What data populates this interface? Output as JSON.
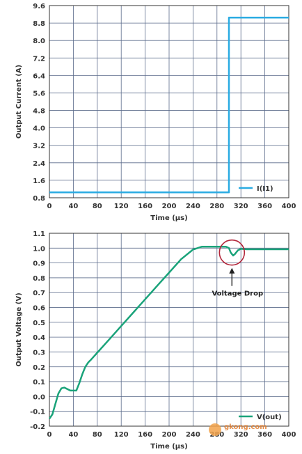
{
  "chart_data": [
    {
      "type": "line",
      "xlabel": "Time (μs)",
      "ylabel": "Output Current (A)",
      "xlim": [
        0,
        400
      ],
      "ylim": [
        0.8,
        9.6
      ],
      "xticks": [
        0,
        40,
        80,
        120,
        160,
        200,
        240,
        280,
        320,
        360,
        400
      ],
      "yticks": [
        0.8,
        1.6,
        2.4,
        3.2,
        4.0,
        4.8,
        5.6,
        6.4,
        7.2,
        8.0,
        8.8,
        9.6
      ],
      "grid": true,
      "legend_position": "bottom-right",
      "color": "#29abe2",
      "series": [
        {
          "name": "I(I1)",
          "x": [
            0,
            300,
            300,
            400
          ],
          "y": [
            1.05,
            1.05,
            9.05,
            9.05
          ]
        }
      ]
    },
    {
      "type": "line",
      "xlabel": "Time (μs)",
      "ylabel": "Output Voltage (V)",
      "xlim": [
        0,
        400
      ],
      "ylim": [
        -0.2,
        1.1
      ],
      "xticks": [
        0,
        40,
        80,
        120,
        160,
        200,
        240,
        280,
        320,
        360,
        400
      ],
      "yticks": [
        -0.2,
        -0.1,
        0.0,
        0.1,
        0.2,
        0.3,
        0.4,
        0.5,
        0.6,
        0.7,
        0.8,
        0.9,
        1.0,
        1.1
      ],
      "grid": true,
      "legend_position": "bottom-right",
      "color": "#1aa37a",
      "annotation": {
        "text": "Voltage Drop",
        "x": 305,
        "y": 0.97
      },
      "series": [
        {
          "name": "V(out)",
          "x": [
            0,
            5,
            10,
            15,
            20,
            25,
            30,
            35,
            40,
            45,
            50,
            55,
            60,
            65,
            70,
            80,
            100,
            120,
            140,
            160,
            180,
            200,
            220,
            240,
            255,
            260,
            295,
            300,
            303,
            307,
            310,
            315,
            320,
            330,
            400
          ],
          "y": [
            -0.15,
            -0.12,
            -0.05,
            0.02,
            0.055,
            0.06,
            0.05,
            0.04,
            0.04,
            0.04,
            0.09,
            0.15,
            0.2,
            0.23,
            0.25,
            0.295,
            0.385,
            0.475,
            0.565,
            0.655,
            0.745,
            0.835,
            0.925,
            0.99,
            1.01,
            1.01,
            1.01,
            1.0,
            0.97,
            0.95,
            0.96,
            0.985,
            0.995,
            0.992,
            0.992
          ]
        }
      ]
    }
  ],
  "watermark": {
    "site": "gkong.com"
  }
}
